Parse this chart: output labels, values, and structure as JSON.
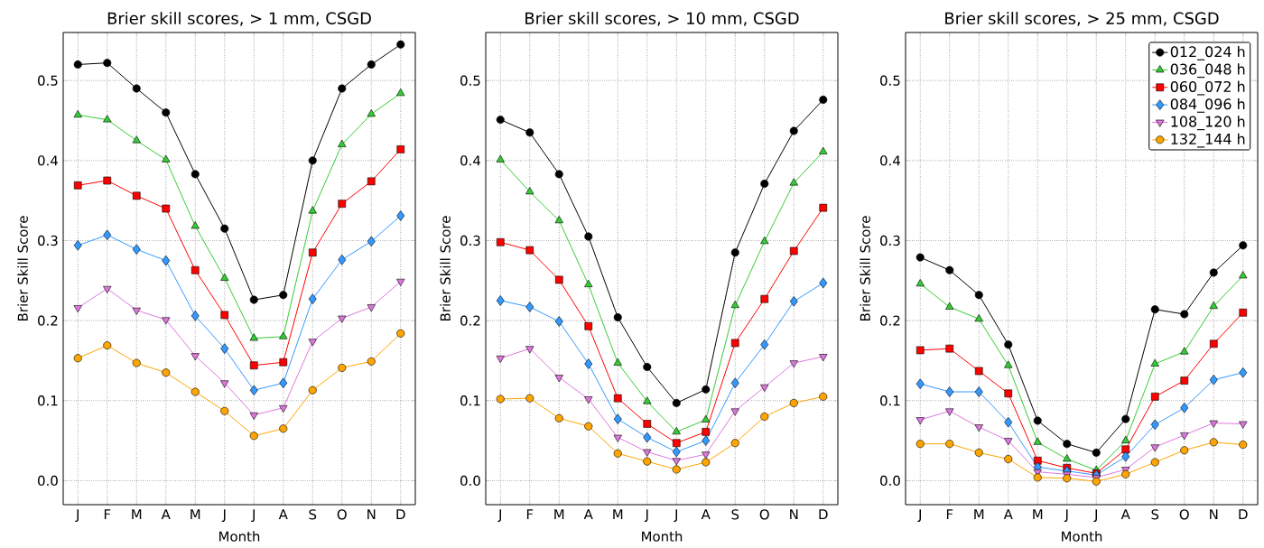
{
  "chart_data": [
    {
      "type": "line",
      "title": "Brier skill scores, > 1 mm, CSGD",
      "xlabel": "Month",
      "ylabel": "Brier Skill Score",
      "categories": [
        "J",
        "F",
        "M",
        "A",
        "M",
        "J",
        "J",
        "A",
        "S",
        "O",
        "N",
        "D"
      ],
      "ylim": [
        -0.03,
        0.56
      ],
      "yticks": [
        {
          "value": 0,
          "label": "0.0"
        },
        {
          "value": 0.1,
          "label": "0.1"
        },
        {
          "value": 0.2,
          "label": "0.2"
        },
        {
          "value": 0.3,
          "label": "0.3"
        },
        {
          "value": 0.4,
          "label": "0.4"
        },
        {
          "value": 0.5,
          "label": "0.5"
        }
      ],
      "grid": true,
      "legend": false,
      "line_style": "solid",
      "series": [
        {
          "color": "#000000",
          "marker": "circle",
          "values": [
            0.52,
            0.522,
            0.49,
            0.46,
            0.383,
            0.315,
            0.226,
            0.232,
            0.4,
            0.49,
            0.52,
            0.545
          ]
        },
        {
          "color": "#33cc33",
          "marker": "triangle",
          "values": [
            0.457,
            0.451,
            0.425,
            0.401,
            0.318,
            0.253,
            0.178,
            0.18,
            0.337,
            0.42,
            0.458,
            0.484
          ]
        },
        {
          "color": "#ff0000",
          "marker": "square",
          "values": [
            0.369,
            0.375,
            0.356,
            0.34,
            0.263,
            0.207,
            0.144,
            0.148,
            0.285,
            0.346,
            0.374,
            0.414
          ]
        },
        {
          "color": "#3399ff",
          "marker": "diamond",
          "values": [
            0.294,
            0.307,
            0.289,
            0.275,
            0.206,
            0.165,
            0.113,
            0.122,
            0.227,
            0.276,
            0.299,
            0.331
          ]
        },
        {
          "color": "#dd77dd",
          "marker": "triangle-down",
          "values": [
            0.216,
            0.24,
            0.213,
            0.201,
            0.156,
            0.122,
            0.082,
            0.091,
            0.174,
            0.203,
            0.217,
            0.249
          ]
        },
        {
          "color": "#ffa500",
          "marker": "circle",
          "values": [
            0.153,
            0.169,
            0.147,
            0.135,
            0.111,
            0.087,
            0.056,
            0.065,
            0.113,
            0.141,
            0.149,
            0.184
          ]
        }
      ]
    },
    {
      "type": "line",
      "title": "Brier skill scores, > 10 mm, CSGD",
      "xlabel": "Month",
      "ylabel": "Brier Skill Score",
      "categories": [
        "J",
        "F",
        "M",
        "A",
        "M",
        "J",
        "J",
        "A",
        "S",
        "O",
        "N",
        "D"
      ],
      "ylim": [
        -0.03,
        0.56
      ],
      "yticks": [
        {
          "value": 0,
          "label": "0.0"
        },
        {
          "value": 0.1,
          "label": "0.1"
        },
        {
          "value": 0.2,
          "label": "0.2"
        },
        {
          "value": 0.3,
          "label": "0.3"
        },
        {
          "value": 0.4,
          "label": "0.4"
        },
        {
          "value": 0.5,
          "label": "0.5"
        }
      ],
      "grid": true,
      "legend": false,
      "line_style": "solid",
      "series": [
        {
          "color": "#000000",
          "marker": "circle",
          "values": [
            0.451,
            0.435,
            0.383,
            0.305,
            0.204,
            0.142,
            0.097,
            0.114,
            0.285,
            0.371,
            0.437,
            0.476
          ]
        },
        {
          "color": "#33cc33",
          "marker": "triangle",
          "values": [
            0.401,
            0.361,
            0.325,
            0.245,
            0.147,
            0.099,
            0.061,
            0.076,
            0.219,
            0.299,
            0.372,
            0.411
          ]
        },
        {
          "color": "#ff0000",
          "marker": "square",
          "values": [
            0.298,
            0.288,
            0.251,
            0.193,
            0.103,
            0.071,
            0.047,
            0.061,
            0.172,
            0.227,
            0.287,
            0.341
          ]
        },
        {
          "color": "#3399ff",
          "marker": "diamond",
          "values": [
            0.225,
            0.217,
            0.199,
            0.146,
            0.077,
            0.054,
            0.036,
            0.05,
            0.122,
            0.17,
            0.224,
            0.247
          ]
        },
        {
          "color": "#dd77dd",
          "marker": "triangle-down",
          "values": [
            0.153,
            0.165,
            0.129,
            0.102,
            0.054,
            0.036,
            0.025,
            0.033,
            0.087,
            0.117,
            0.147,
            0.155
          ]
        },
        {
          "color": "#ffa500",
          "marker": "circle",
          "values": [
            0.102,
            0.103,
            0.078,
            0.068,
            0.034,
            0.024,
            0.014,
            0.023,
            0.047,
            0.08,
            0.097,
            0.105
          ]
        }
      ]
    },
    {
      "type": "line",
      "title": "Brier skill scores, > 25 mm, CSGD",
      "xlabel": "Month",
      "ylabel": "Brier Skill Score",
      "categories": [
        "J",
        "F",
        "M",
        "A",
        "M",
        "J",
        "J",
        "A",
        "S",
        "O",
        "N",
        "D"
      ],
      "ylim": [
        -0.03,
        0.56
      ],
      "yticks": [
        {
          "value": 0,
          "label": "0.0"
        },
        {
          "value": 0.1,
          "label": "0.1"
        },
        {
          "value": 0.2,
          "label": "0.2"
        },
        {
          "value": 0.3,
          "label": "0.3"
        },
        {
          "value": 0.4,
          "label": "0.4"
        },
        {
          "value": 0.5,
          "label": "0.5"
        }
      ],
      "grid": true,
      "legend": "top right",
      "line_style": "solid",
      "series": [
        {
          "name": "012_024 h",
          "color": "#000000",
          "marker": "circle",
          "values": [
            0.279,
            0.263,
            0.232,
            0.17,
            0.075,
            0.046,
            0.035,
            0.077,
            0.214,
            0.208,
            0.26,
            0.294
          ]
        },
        {
          "name": "036_048 h",
          "color": "#33cc33",
          "marker": "triangle",
          "values": [
            0.246,
            0.217,
            0.202,
            0.144,
            0.048,
            0.027,
            0.013,
            0.05,
            0.146,
            0.161,
            0.218,
            0.256
          ]
        },
        {
          "name": "060_072 h",
          "color": "#ff0000",
          "marker": "square",
          "values": [
            0.163,
            0.165,
            0.137,
            0.109,
            0.025,
            0.016,
            0.009,
            0.039,
            0.105,
            0.125,
            0.171,
            0.21
          ]
        },
        {
          "name": "084_096 h",
          "color": "#3399ff",
          "marker": "diamond",
          "values": [
            0.121,
            0.111,
            0.111,
            0.073,
            0.017,
            0.012,
            0.007,
            0.03,
            0.07,
            0.091,
            0.126,
            0.135
          ]
        },
        {
          "name": "108_120 h",
          "color": "#dd77dd",
          "marker": "triangle-down",
          "values": [
            0.076,
            0.087,
            0.067,
            0.05,
            0.011,
            0.008,
            0.004,
            0.014,
            0.042,
            0.057,
            0.072,
            0.071
          ]
        },
        {
          "name": "132_144 h",
          "color": "#ffa500",
          "marker": "circle",
          "values": [
            0.046,
            0.046,
            0.035,
            0.027,
            0.004,
            0.003,
            -0.001,
            0.008,
            0.023,
            0.038,
            0.048,
            0.045
          ]
        }
      ]
    }
  ]
}
